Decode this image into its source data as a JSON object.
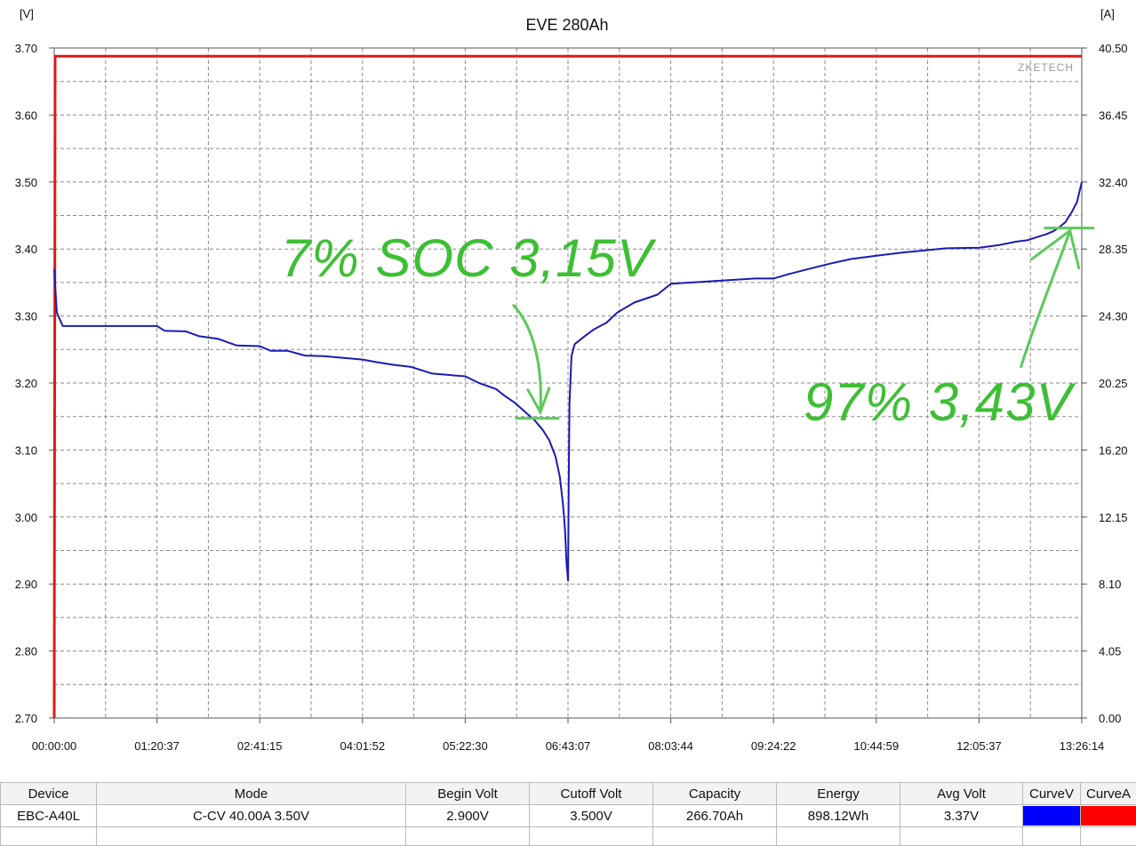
{
  "chart_data": {
    "type": "line",
    "title": "EVE 280Ah",
    "left_unit": "[V]",
    "right_unit": "[A]",
    "watermark": "ZKETECH",
    "x_ticks": [
      "00:00:00",
      "01:20:37",
      "02:41:15",
      "04:01:52",
      "05:22:30",
      "06:43:07",
      "08:03:44",
      "09:24:22",
      "10:44:59",
      "12:05:37",
      "13:26:14"
    ],
    "y_left_ticks": [
      "3.70",
      "3.60",
      "3.50",
      "3.40",
      "3.30",
      "3.20",
      "3.10",
      "3.00",
      "2.90",
      "2.80",
      "2.70"
    ],
    "y_right_ticks": [
      "40.50",
      "36.45",
      "32.40",
      "28.35",
      "24.30",
      "20.25",
      "16.20",
      "12.15",
      "8.10",
      "4.05",
      "0.00"
    ],
    "xlim_seconds": [
      0,
      48374
    ],
    "ylim_left": [
      2.7,
      3.7
    ],
    "ylim_right": [
      0,
      40.5
    ],
    "grid": true,
    "series": [
      {
        "name": "CurveV",
        "axis": "left",
        "color": "#1a1ab5",
        "x": [
          0,
          120,
          400,
          2000,
          4837,
          5200,
          6200,
          6800,
          7700,
          8600,
          9676,
          10200,
          11000,
          11800,
          12700,
          14515,
          15200,
          16000,
          16800,
          17800,
          19353,
          20000,
          20800,
          21200,
          21700,
          22200,
          22600,
          23000,
          23300,
          23600,
          23800,
          23950,
          24050,
          24120,
          24191,
          24220,
          24260,
          24350,
          24500,
          24900,
          25400,
          26000,
          26500,
          27300,
          28400,
          29030,
          30000,
          31000,
          32000,
          33000,
          33868,
          34500,
          35500,
          36500,
          37500,
          38707,
          40000,
          41000,
          42000,
          43545,
          44500,
          45300,
          45800,
          46300,
          46700,
          47000,
          47300,
          47600,
          47900,
          48150,
          48374
        ],
        "y": [
          3.37,
          3.305,
          3.285,
          3.285,
          3.285,
          3.278,
          3.277,
          3.27,
          3.266,
          3.256,
          3.255,
          3.248,
          3.248,
          3.241,
          3.24,
          3.235,
          3.231,
          3.227,
          3.224,
          3.214,
          3.21,
          3.2,
          3.191,
          3.181,
          3.17,
          3.156,
          3.145,
          3.13,
          3.115,
          3.09,
          3.06,
          3.02,
          2.98,
          2.93,
          2.905,
          3.05,
          3.17,
          3.24,
          3.258,
          3.268,
          3.28,
          3.29,
          3.305,
          3.32,
          3.332,
          3.348,
          3.35,
          3.352,
          3.354,
          3.356,
          3.356,
          3.362,
          3.37,
          3.378,
          3.385,
          3.39,
          3.395,
          3.398,
          3.401,
          3.402,
          3.406,
          3.411,
          3.413,
          3.418,
          3.422,
          3.426,
          3.432,
          3.44,
          3.455,
          3.47,
          3.5
        ]
      },
      {
        "name": "CurveA",
        "axis": "right",
        "color": "#e01818",
        "x": [
          0,
          40,
          48374
        ],
        "y": [
          0,
          40.0,
          40.0
        ]
      }
    ],
    "annotations": [
      {
        "text": "7% SOC 3,15V",
        "x": 22800,
        "y": 3.15
      },
      {
        "text": "97% 3,43V",
        "x": 47900,
        "y": 3.43
      }
    ]
  },
  "results_table": {
    "headers": [
      "Device",
      "Mode",
      "Begin Volt",
      "Cutoff Volt",
      "Capacity",
      "Energy",
      "Avg Volt",
      "CurveV",
      "CurveA"
    ],
    "row": {
      "device": "EBC-A40L",
      "mode": "C-CV  40.00A  3.50V",
      "begin_volt": "2.900V",
      "cutoff_volt": "3.500V",
      "capacity": "266.70Ah",
      "energy": "898.12Wh",
      "avg_volt": "3.37V"
    },
    "curve_v_color": "#0000ff",
    "curve_a_color": "#ff0000"
  }
}
